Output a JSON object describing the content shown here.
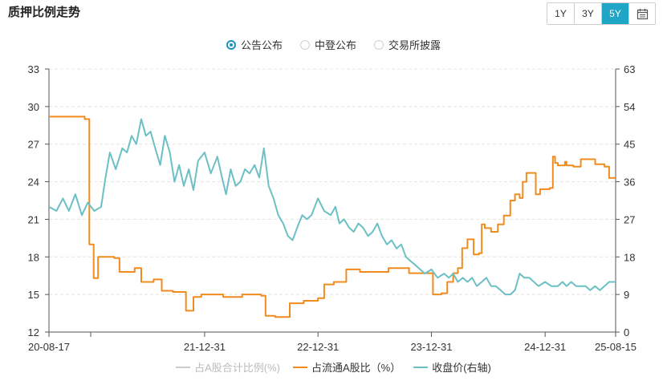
{
  "header": {
    "title": "质押比例走势"
  },
  "range_buttons": [
    {
      "label": "1Y",
      "active": false
    },
    {
      "label": "3Y",
      "active": false
    },
    {
      "label": "5Y",
      "active": true
    }
  ],
  "calendar_icon": "calendar-icon",
  "source_options": [
    {
      "label": "公告公布",
      "checked": true
    },
    {
      "label": "中登公布",
      "checked": false
    },
    {
      "label": "交易所披露",
      "checked": false
    }
  ],
  "colors": {
    "accent": "#1fa6c7",
    "series_gray": "#cccccc",
    "series_orange": "#f08c1e",
    "series_teal": "#6cc0c4"
  },
  "chart_data": {
    "type": "line",
    "x_tick_labels": [
      "20-08-17",
      "21-12-31",
      "22-12-31",
      "23-12-31",
      "24-12-31",
      "25-08-15"
    ],
    "x_tick_dates": [
      "2020-08-17",
      "2021-12-31",
      "2022-12-31",
      "2023-12-31",
      "2024-12-31",
      "2025-08-15"
    ],
    "x_range": [
      "2020-08-17",
      "2025-08-15"
    ],
    "y_left": {
      "ticks": [
        12,
        15,
        18,
        21,
        24,
        27,
        30,
        33
      ],
      "range": [
        12,
        33
      ]
    },
    "y_right": {
      "ticks": [
        0,
        9,
        18,
        27,
        36,
        45,
        54,
        63
      ],
      "range": [
        0,
        63
      ]
    },
    "grid": true,
    "legend_position": "bottom",
    "series": [
      {
        "name": "占A股合计比例(%)",
        "axis": "left",
        "color": "#cccccc",
        "points": []
      },
      {
        "name": "占流通A股比（%）",
        "axis": "left",
        "color": "#f08c1e",
        "step": true,
        "points": [
          [
            "2020-08-17",
            29.2
          ],
          [
            "2020-12-10",
            29.0
          ],
          [
            "2020-12-25",
            19.0
          ],
          [
            "2021-01-08",
            16.3
          ],
          [
            "2021-01-22",
            18.0
          ],
          [
            "2021-03-15",
            17.9
          ],
          [
            "2021-04-01",
            16.8
          ],
          [
            "2021-05-20",
            17.1
          ],
          [
            "2021-06-10",
            16.0
          ],
          [
            "2021-07-20",
            16.2
          ],
          [
            "2021-08-15",
            15.3
          ],
          [
            "2021-09-20",
            15.2
          ],
          [
            "2021-11-01",
            13.7
          ],
          [
            "2021-11-25",
            14.8
          ],
          [
            "2021-12-20",
            15.0
          ],
          [
            "2022-03-01",
            14.8
          ],
          [
            "2022-05-01",
            15.0
          ],
          [
            "2022-07-01",
            14.9
          ],
          [
            "2022-07-15",
            13.3
          ],
          [
            "2022-08-15",
            13.2
          ],
          [
            "2022-10-01",
            14.3
          ],
          [
            "2022-11-15",
            14.5
          ],
          [
            "2022-12-31",
            14.7
          ],
          [
            "2023-01-20",
            15.8
          ],
          [
            "2023-02-20",
            16.0
          ],
          [
            "2023-04-01",
            17.0
          ],
          [
            "2023-05-15",
            16.8
          ],
          [
            "2023-08-15",
            17.1
          ],
          [
            "2023-10-20",
            16.7
          ],
          [
            "2023-12-10",
            16.7
          ],
          [
            "2024-01-05",
            15.0
          ],
          [
            "2024-02-01",
            15.1
          ],
          [
            "2024-02-20",
            16.0
          ],
          [
            "2024-03-10",
            16.7
          ],
          [
            "2024-03-25",
            17.1
          ],
          [
            "2024-04-08",
            18.7
          ],
          [
            "2024-04-25",
            19.4
          ],
          [
            "2024-05-15",
            18.2
          ],
          [
            "2024-06-01",
            18.3
          ],
          [
            "2024-06-10",
            20.6
          ],
          [
            "2024-06-20",
            20.3
          ],
          [
            "2024-07-10",
            20.0
          ],
          [
            "2024-08-01",
            20.6
          ],
          [
            "2024-08-20",
            21.3
          ],
          [
            "2024-09-10",
            22.5
          ],
          [
            "2024-09-25",
            23.0
          ],
          [
            "2024-10-10",
            22.7
          ],
          [
            "2024-10-20",
            24.0
          ],
          [
            "2024-11-01",
            24.7
          ],
          [
            "2024-11-20",
            24.7
          ],
          [
            "2024-12-01",
            23.0
          ],
          [
            "2024-12-15",
            23.4
          ],
          [
            "2025-01-15",
            23.5
          ],
          [
            "2025-01-25",
            26.0
          ],
          [
            "2025-02-01",
            25.5
          ],
          [
            "2025-02-10",
            25.3
          ],
          [
            "2025-03-05",
            25.6
          ],
          [
            "2025-03-10",
            25.3
          ],
          [
            "2025-04-01",
            25.2
          ],
          [
            "2025-04-25",
            25.8
          ],
          [
            "2025-06-10",
            25.4
          ],
          [
            "2025-07-10",
            25.2
          ],
          [
            "2025-07-25",
            24.3
          ],
          [
            "2025-08-15",
            24.3
          ]
        ]
      },
      {
        "name": "收盘价(右轴)",
        "axis": "right",
        "color": "#6cc0c4",
        "points": [
          [
            "2020-08-17",
            30
          ],
          [
            "2020-09-10",
            29
          ],
          [
            "2020-10-01",
            32
          ],
          [
            "2020-10-20",
            29
          ],
          [
            "2020-11-10",
            33
          ],
          [
            "2020-12-01",
            28
          ],
          [
            "2020-12-20",
            31
          ],
          [
            "2021-01-10",
            29
          ],
          [
            "2021-02-01",
            30
          ],
          [
            "2021-02-15",
            37
          ],
          [
            "2021-03-01",
            43
          ],
          [
            "2021-03-20",
            39
          ],
          [
            "2021-04-10",
            44
          ],
          [
            "2021-04-25",
            43
          ],
          [
            "2021-05-10",
            47
          ],
          [
            "2021-05-25",
            45
          ],
          [
            "2021-06-10",
            51
          ],
          [
            "2021-06-25",
            47
          ],
          [
            "2021-07-10",
            48
          ],
          [
            "2021-07-25",
            44
          ],
          [
            "2021-08-10",
            40
          ],
          [
            "2021-08-25",
            47
          ],
          [
            "2021-09-10",
            43
          ],
          [
            "2021-09-25",
            36
          ],
          [
            "2021-10-10",
            40
          ],
          [
            "2021-10-25",
            35
          ],
          [
            "2021-11-10",
            39
          ],
          [
            "2021-11-25",
            34
          ],
          [
            "2021-12-10",
            41
          ],
          [
            "2021-12-31",
            43
          ],
          [
            "2022-01-20",
            38
          ],
          [
            "2022-02-10",
            42
          ],
          [
            "2022-02-25",
            37
          ],
          [
            "2022-03-10",
            33
          ],
          [
            "2022-03-25",
            39
          ],
          [
            "2022-04-10",
            35
          ],
          [
            "2022-04-25",
            36
          ],
          [
            "2022-05-10",
            39
          ],
          [
            "2022-05-25",
            38
          ],
          [
            "2022-06-10",
            40
          ],
          [
            "2022-06-25",
            37
          ],
          [
            "2022-07-10",
            44
          ],
          [
            "2022-07-25",
            35
          ],
          [
            "2022-08-10",
            32
          ],
          [
            "2022-08-25",
            28
          ],
          [
            "2022-09-10",
            26
          ],
          [
            "2022-09-25",
            23
          ],
          [
            "2022-10-10",
            22
          ],
          [
            "2022-10-25",
            25
          ],
          [
            "2022-11-10",
            28
          ],
          [
            "2022-11-25",
            27
          ],
          [
            "2022-12-10",
            28
          ],
          [
            "2022-12-31",
            32
          ],
          [
            "2023-01-20",
            29
          ],
          [
            "2023-02-10",
            28
          ],
          [
            "2023-02-25",
            30
          ],
          [
            "2023-03-10",
            26
          ],
          [
            "2023-03-25",
            27
          ],
          [
            "2023-04-10",
            25
          ],
          [
            "2023-04-25",
            24
          ],
          [
            "2023-05-10",
            26
          ],
          [
            "2023-05-25",
            25
          ],
          [
            "2023-06-10",
            23
          ],
          [
            "2023-06-25",
            24
          ],
          [
            "2023-07-10",
            26
          ],
          [
            "2023-07-25",
            23
          ],
          [
            "2023-08-10",
            21
          ],
          [
            "2023-08-25",
            22
          ],
          [
            "2023-09-10",
            20
          ],
          [
            "2023-09-25",
            21
          ],
          [
            "2023-10-10",
            18
          ],
          [
            "2023-10-25",
            17
          ],
          [
            "2023-11-10",
            16
          ],
          [
            "2023-11-25",
            15
          ],
          [
            "2023-12-10",
            14
          ],
          [
            "2023-12-31",
            15
          ],
          [
            "2024-01-20",
            13
          ],
          [
            "2024-02-10",
            14
          ],
          [
            "2024-02-25",
            13
          ],
          [
            "2024-03-10",
            14
          ],
          [
            "2024-03-25",
            12
          ],
          [
            "2024-04-10",
            13
          ],
          [
            "2024-04-25",
            12
          ],
          [
            "2024-05-10",
            13
          ],
          [
            "2024-05-25",
            11
          ],
          [
            "2024-06-10",
            12
          ],
          [
            "2024-06-25",
            13
          ],
          [
            "2024-07-10",
            11
          ],
          [
            "2024-07-25",
            11
          ],
          [
            "2024-08-10",
            10
          ],
          [
            "2024-08-25",
            9
          ],
          [
            "2024-09-10",
            9
          ],
          [
            "2024-09-25",
            10
          ],
          [
            "2024-10-10",
            14
          ],
          [
            "2024-10-25",
            13
          ],
          [
            "2024-11-10",
            13
          ],
          [
            "2024-11-25",
            12
          ],
          [
            "2024-12-10",
            11
          ],
          [
            "2024-12-31",
            12
          ],
          [
            "2025-01-20",
            11
          ],
          [
            "2025-02-10",
            11
          ],
          [
            "2025-02-25",
            12
          ],
          [
            "2025-03-10",
            11
          ],
          [
            "2025-03-25",
            12
          ],
          [
            "2025-04-10",
            11
          ],
          [
            "2025-04-25",
            11
          ],
          [
            "2025-05-10",
            11
          ],
          [
            "2025-05-25",
            10
          ],
          [
            "2025-06-10",
            11
          ],
          [
            "2025-06-25",
            10
          ],
          [
            "2025-07-10",
            11
          ],
          [
            "2025-07-25",
            12
          ],
          [
            "2025-08-05",
            12
          ],
          [
            "2025-08-15",
            12
          ]
        ]
      }
    ]
  }
}
